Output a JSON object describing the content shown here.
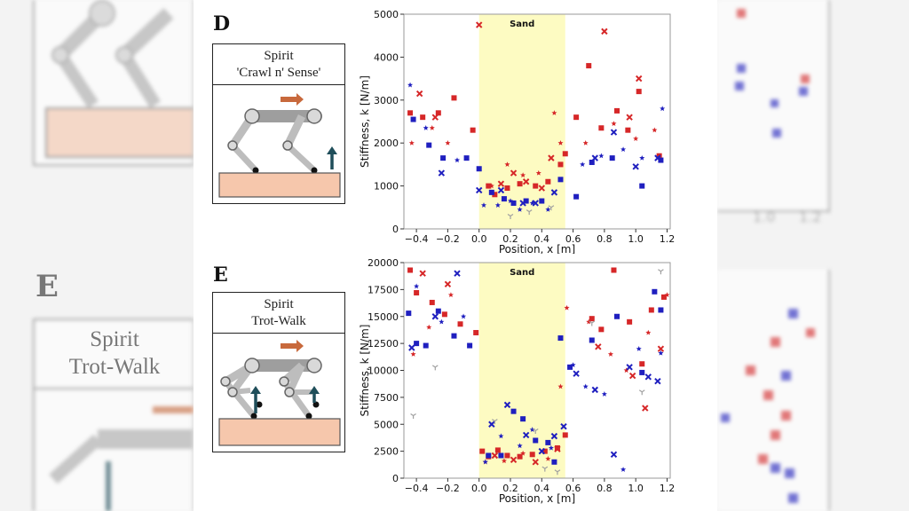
{
  "panels": {
    "d": {
      "letter": "D",
      "title_line1": "Spirit",
      "title_line2": "'Crawl n' Sense'"
    },
    "e": {
      "letter": "E",
      "title_line1": "Spirit",
      "title_line2": "Trot-Walk"
    }
  },
  "background": {
    "left_letter": "E",
    "left_title_line1": "Spirit",
    "left_title_line2": "Trot-Walk"
  },
  "colors": {
    "red": "#d62728",
    "blue": "#1f1fbf",
    "gray": "#a0a0a0",
    "sand": "#fdfbc2",
    "leg": "#bdbdbd",
    "ground": "#f6c7ac",
    "arrow_orange": "#c8693c",
    "arrow_teal": "#1f4e5a"
  },
  "chart_data": [
    {
      "type": "scatter",
      "panel": "D",
      "xlabel": "Position, x [m]",
      "ylabel": "Stiffness, k [N/m]",
      "xlim": [
        -0.48,
        1.22
      ],
      "ylim": [
        0,
        5000
      ],
      "xticks": [
        -0.4,
        -0.2,
        0.0,
        0.2,
        0.4,
        0.6,
        0.8,
        1.0,
        1.2
      ],
      "xtick_labels": [
        "−0.4",
        "−0.2",
        "0.0",
        "0.2",
        "0.4",
        "0.6",
        "0.8",
        "1.0",
        "1.2"
      ],
      "yticks": [
        0,
        1000,
        2000,
        3000,
        4000,
        5000
      ],
      "ytick_labels": [
        "0",
        "1000",
        "2000",
        "3000",
        "4000",
        "5000"
      ],
      "region": {
        "x0": 0.0,
        "x1": 0.55,
        "label": "Sand"
      },
      "series": [
        {
          "color": "red",
          "marker": "square",
          "points": [
            [
              -0.44,
              2700
            ],
            [
              -0.36,
              2600
            ],
            [
              -0.26,
              2700
            ],
            [
              -0.16,
              3050
            ],
            [
              -0.04,
              2300
            ],
            [
              0.06,
              1000
            ],
            [
              0.1,
              800
            ],
            [
              0.18,
              950
            ],
            [
              0.26,
              1050
            ],
            [
              0.36,
              1000
            ],
            [
              0.44,
              1100
            ],
            [
              0.52,
              1500
            ],
            [
              0.55,
              1750
            ],
            [
              0.62,
              2600
            ],
            [
              0.7,
              3800
            ],
            [
              0.78,
              2350
            ],
            [
              0.88,
              2750
            ],
            [
              0.95,
              2300
            ],
            [
              1.02,
              3200
            ],
            [
              1.15,
              1700
            ]
          ]
        },
        {
          "color": "red",
          "marker": "x",
          "points": [
            [
              -0.38,
              3150
            ],
            [
              -0.28,
              2600
            ],
            [
              0.0,
              4750
            ],
            [
              0.14,
              1050
            ],
            [
              0.22,
              1300
            ],
            [
              0.3,
              1100
            ],
            [
              0.4,
              950
            ],
            [
              0.46,
              1650
            ],
            [
              0.8,
              4600
            ],
            [
              0.96,
              2600
            ],
            [
              1.02,
              3500
            ]
          ]
        },
        {
          "color": "red",
          "marker": "star",
          "points": [
            [
              -0.43,
              2000
            ],
            [
              -0.3,
              2350
            ],
            [
              -0.2,
              2000
            ],
            [
              0.08,
              1000
            ],
            [
              0.18,
              1500
            ],
            [
              0.28,
              1250
            ],
            [
              0.38,
              1300
            ],
            [
              0.48,
              2700
            ],
            [
              0.52,
              2000
            ],
            [
              0.68,
              2000
            ],
            [
              0.86,
              2450
            ],
            [
              1.0,
              2100
            ],
            [
              1.12,
              2300
            ]
          ]
        },
        {
          "color": "blue",
          "marker": "square",
          "points": [
            [
              -0.42,
              2550
            ],
            [
              -0.32,
              1950
            ],
            [
              -0.23,
              1650
            ],
            [
              -0.08,
              1650
            ],
            [
              0.0,
              1400
            ],
            [
              0.08,
              850
            ],
            [
              0.16,
              700
            ],
            [
              0.22,
              600
            ],
            [
              0.3,
              650
            ],
            [
              0.4,
              650
            ],
            [
              0.52,
              1150
            ],
            [
              0.62,
              750
            ],
            [
              0.72,
              1550
            ],
            [
              0.85,
              1650
            ],
            [
              1.04,
              1000
            ],
            [
              1.16,
              1600
            ]
          ]
        },
        {
          "color": "blue",
          "marker": "x",
          "points": [
            [
              -0.24,
              1300
            ],
            [
              0.0,
              900
            ],
            [
              0.14,
              900
            ],
            [
              0.28,
              600
            ],
            [
              0.36,
              600
            ],
            [
              0.48,
              850
            ],
            [
              0.74,
              1650
            ],
            [
              0.86,
              2250
            ],
            [
              1.0,
              1450
            ],
            [
              1.14,
              1650
            ]
          ]
        },
        {
          "color": "blue",
          "marker": "star",
          "points": [
            [
              -0.44,
              3350
            ],
            [
              -0.34,
              2350
            ],
            [
              -0.14,
              1600
            ],
            [
              0.03,
              550
            ],
            [
              0.12,
              550
            ],
            [
              0.2,
              650
            ],
            [
              0.26,
              450
            ],
            [
              0.34,
              600
            ],
            [
              0.44,
              450
            ],
            [
              0.66,
              1500
            ],
            [
              0.78,
              1700
            ],
            [
              0.92,
              1850
            ],
            [
              1.04,
              1650
            ],
            [
              1.17,
              2800
            ]
          ]
        },
        {
          "color": "gray",
          "marker": "tri",
          "points": [
            [
              0.2,
              300
            ],
            [
              0.32,
              400
            ],
            [
              0.46,
              500
            ]
          ]
        }
      ]
    },
    {
      "type": "scatter",
      "panel": "E",
      "xlabel": "Position, x [m]",
      "ylabel": "Stiffness, k [N/m]",
      "xlim": [
        -0.48,
        1.22
      ],
      "ylim": [
        0,
        20000
      ],
      "xticks": [
        -0.4,
        -0.2,
        0.0,
        0.2,
        0.4,
        0.6,
        0.8,
        1.0,
        1.2
      ],
      "xtick_labels": [
        "−0.4",
        "−0.2",
        "0.0",
        "0.2",
        "0.4",
        "0.6",
        "0.8",
        "1.0",
        "1.2"
      ],
      "yticks": [
        0,
        2500,
        5000,
        7500,
        10000,
        12500,
        15000,
        17500,
        20000
      ],
      "ytick_labels": [
        "0",
        "2500",
        "5000",
        "7500",
        "10000",
        "12500",
        "15000",
        "17500",
        "20000"
      ],
      "region": {
        "x0": 0.0,
        "x1": 0.55,
        "label": "Sand"
      },
      "series": [
        {
          "color": "red",
          "marker": "square",
          "points": [
            [
              -0.44,
              19300
            ],
            [
              -0.4,
              17200
            ],
            [
              -0.3,
              16300
            ],
            [
              -0.22,
              15200
            ],
            [
              -0.12,
              14300
            ],
            [
              -0.02,
              13500
            ],
            [
              0.02,
              2500
            ],
            [
              0.06,
              2000
            ],
            [
              0.12,
              2600
            ],
            [
              0.18,
              2100
            ],
            [
              0.26,
              2000
            ],
            [
              0.34,
              2200
            ],
            [
              0.42,
              2500
            ],
            [
              0.5,
              2800
            ],
            [
              0.55,
              4000
            ],
            [
              0.72,
              14800
            ],
            [
              0.78,
              13800
            ],
            [
              0.86,
              19300
            ],
            [
              0.96,
              14500
            ],
            [
              1.04,
              10600
            ],
            [
              1.1,
              15600
            ],
            [
              1.18,
              16800
            ]
          ]
        },
        {
          "color": "red",
          "marker": "x",
          "points": [
            [
              -0.36,
              19000
            ],
            [
              -0.2,
              18000
            ],
            [
              0.1,
              2100
            ],
            [
              0.22,
              1700
            ],
            [
              0.36,
              1500
            ],
            [
              0.5,
              2700
            ],
            [
              0.76,
              12200
            ],
            [
              0.98,
              9500
            ],
            [
              1.06,
              6500
            ],
            [
              1.16,
              12000
            ]
          ]
        },
        {
          "color": "red",
          "marker": "star",
          "points": [
            [
              -0.42,
              11500
            ],
            [
              -0.32,
              14000
            ],
            [
              -0.18,
              17000
            ],
            [
              0.04,
              1500
            ],
            [
              0.16,
              1600
            ],
            [
              0.28,
              2300
            ],
            [
              0.44,
              1800
            ],
            [
              0.52,
              8500
            ],
            [
              0.56,
              15800
            ],
            [
              0.7,
              14500
            ],
            [
              0.84,
              11500
            ],
            [
              0.94,
              10000
            ],
            [
              1.08,
              13500
            ],
            [
              1.2,
              17000
            ]
          ]
        },
        {
          "color": "blue",
          "marker": "square",
          "points": [
            [
              -0.45,
              15300
            ],
            [
              -0.4,
              12500
            ],
            [
              -0.34,
              12300
            ],
            [
              -0.26,
              15500
            ],
            [
              -0.16,
              13200
            ],
            [
              -0.06,
              12300
            ],
            [
              0.06,
              2100
            ],
            [
              0.14,
              2100
            ],
            [
              0.22,
              6200
            ],
            [
              0.28,
              5500
            ],
            [
              0.36,
              3500
            ],
            [
              0.44,
              3300
            ],
            [
              0.48,
              1500
            ],
            [
              0.52,
              13000
            ],
            [
              0.58,
              10300
            ],
            [
              0.72,
              12800
            ],
            [
              0.88,
              15000
            ],
            [
              1.04,
              9800
            ],
            [
              1.12,
              17300
            ],
            [
              1.16,
              15600
            ]
          ]
        },
        {
          "color": "blue",
          "marker": "x",
          "points": [
            [
              -0.43,
              12100
            ],
            [
              -0.28,
              15000
            ],
            [
              -0.14,
              19000
            ],
            [
              0.08,
              5000
            ],
            [
              0.18,
              6800
            ],
            [
              0.3,
              4000
            ],
            [
              0.4,
              2500
            ],
            [
              0.48,
              3900
            ],
            [
              0.54,
              4800
            ],
            [
              0.62,
              9700
            ],
            [
              0.74,
              8200
            ],
            [
              0.86,
              2200
            ],
            [
              0.96,
              10300
            ],
            [
              1.08,
              9400
            ],
            [
              1.14,
              9000
            ]
          ]
        },
        {
          "color": "blue",
          "marker": "star",
          "points": [
            [
              -0.4,
              17800
            ],
            [
              -0.24,
              14500
            ],
            [
              -0.1,
              15000
            ],
            [
              0.04,
              1500
            ],
            [
              0.14,
              3900
            ],
            [
              0.26,
              3000
            ],
            [
              0.34,
              4500
            ],
            [
              0.46,
              2800
            ],
            [
              0.6,
              10500
            ],
            [
              0.68,
              8500
            ],
            [
              0.8,
              7800
            ],
            [
              0.92,
              800
            ],
            [
              1.02,
              12000
            ],
            [
              1.16,
              11600
            ]
          ]
        },
        {
          "color": "gray",
          "marker": "tri",
          "points": [
            [
              -0.42,
              5800
            ],
            [
              -0.28,
              10300
            ],
            [
              0.1,
              5300
            ],
            [
              0.36,
              4400
            ],
            [
              0.42,
              900
            ],
            [
              0.5,
              600
            ],
            [
              0.72,
              14400
            ],
            [
              1.04,
              8000
            ],
            [
              1.16,
              19200
            ]
          ]
        }
      ]
    }
  ]
}
